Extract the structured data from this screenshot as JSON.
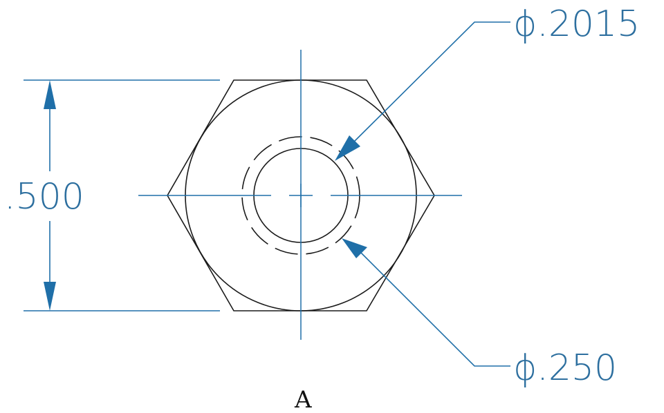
{
  "drawing": {
    "dimensions": {
      "across_flats": ".500",
      "bore_diameter": "ϕ.2015",
      "hidden_diameter": "ϕ.250"
    },
    "view_label": "A",
    "colors": {
      "geometry": "#1a1a1a",
      "dimension": "#1f6fa8",
      "background": "#ffffff"
    }
  }
}
